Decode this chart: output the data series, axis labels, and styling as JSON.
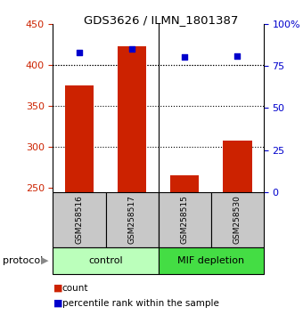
{
  "title": "GDS3626 / ILMN_1801387",
  "samples": [
    "GSM258516",
    "GSM258517",
    "GSM258515",
    "GSM258530"
  ],
  "counts": [
    375,
    422,
    265,
    308
  ],
  "percentile_ranks": [
    83,
    85,
    80,
    81
  ],
  "ylim_left": [
    245,
    450
  ],
  "ylim_right": [
    0,
    100
  ],
  "yticks_left": [
    250,
    300,
    350,
    400,
    450
  ],
  "yticks_right": [
    0,
    25,
    50,
    75,
    100
  ],
  "bar_color": "#cc2200",
  "dot_color": "#0000cc",
  "bar_bottom": 245,
  "groups": [
    {
      "label": "control",
      "color": "#bbffbb"
    },
    {
      "label": "MIF depletion",
      "color": "#44dd44"
    }
  ],
  "grid_yticks": [
    300,
    350,
    400
  ],
  "tick_label_color_left": "#cc2200",
  "tick_label_color_right": "#0000cc",
  "sample_box_color": "#c8c8c8",
  "protocol_label": "protocol",
  "legend_count_label": "count",
  "legend_percentile_label": "percentile rank within the sample"
}
